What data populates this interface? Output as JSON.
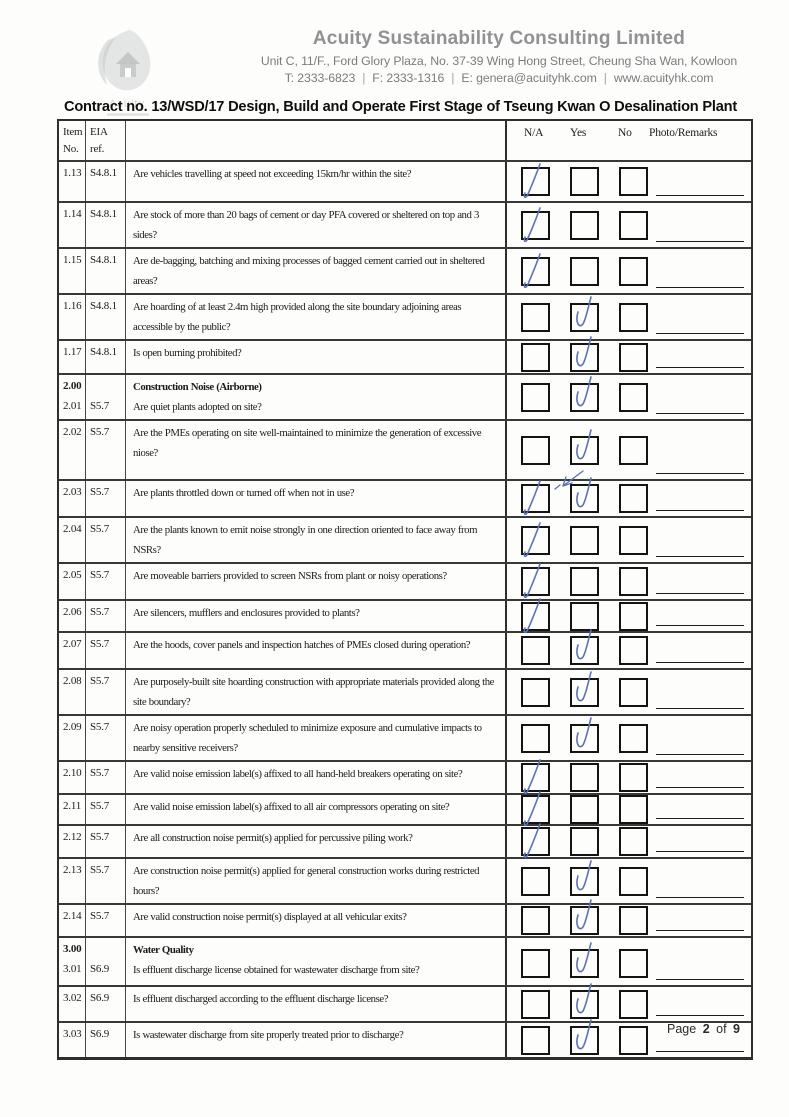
{
  "header": {
    "logo_text": "Acuity",
    "company_name": "Acuity Sustainability Consulting Limited",
    "address": "Unit C, 11/F., Ford Glory Plaza, No. 37-39 Wing Hong Street, Cheung Sha Wan, Kowloon",
    "contact_separator": "|",
    "contact_parts": [
      "T: 2333-6823",
      "F: 2333-1316",
      "E: genera@acuityhk.com",
      "www.acuityhk.com"
    ]
  },
  "title": "Contract no.  13/WSD/17 Design, Build and Operate First Stage of Tseung Kwan O Desalination Plant",
  "table": {
    "col_headers": {
      "item_line1": "Item",
      "item_line2": "No.",
      "eia": "EIA ref.",
      "na": "N/A",
      "yes": "Yes",
      "no": "No",
      "remarks": "Photo/Remarks"
    },
    "rows": [
      {
        "type": "q",
        "item": "1.13",
        "eia": "S4.8.1",
        "question": "Are vehicles travelling at speed not exceeding 15km/hr within the site?",
        "checked": [
          "na"
        ]
      },
      {
        "type": "q",
        "item": "1.14",
        "eia": "S4.8.1",
        "question": "Are stock of more than 20 bags of cement or day PFA covered or sheltered on top and 3 sides?",
        "checked": [
          "na"
        ]
      },
      {
        "type": "q",
        "item": "1.15",
        "eia": "S4.8.1",
        "question": "Are de-bagging, batching and mixing processes of bagged cement carried out in sheltered areas?",
        "checked": [
          "na"
        ]
      },
      {
        "type": "q",
        "item": "1.16",
        "eia": "S4.8.1",
        "question": "Are hoarding of at least 2.4m high provided along the site boundary adjoining areas accessible by the public?",
        "checked": [
          "yes"
        ]
      },
      {
        "type": "q",
        "item": "1.17",
        "eia": "S4.8.1",
        "question": "Is open burning prohibited?",
        "checked": [
          "yes"
        ]
      },
      {
        "type": "section",
        "item": "2.00",
        "title": "Construction Noise (Airborne)",
        "sub_item": "2.01",
        "eia": "S5.7",
        "question": "Are quiet plants adopted on site?",
        "checked": [
          "yes"
        ]
      },
      {
        "type": "q",
        "item": "2.02",
        "eia": "S5.7",
        "question": "Are the PMEs operating on site well-maintained to minimize the generation of excessive niose?",
        "checked": [
          "yes"
        ]
      },
      {
        "type": "q",
        "item": "2.03",
        "eia": "S5.7",
        "question": "Are plants throttled down or turned off when not in use?",
        "checked": [
          "na",
          "yes"
        ],
        "scribble": true
      },
      {
        "type": "q",
        "item": "2.04",
        "eia": "S5.7",
        "question": "Are the plants known to emit noise strongly in one direction oriented to face away from NSRs?",
        "checked": [
          "na"
        ]
      },
      {
        "type": "q",
        "item": "2.05",
        "eia": "S5.7",
        "question": "Are moveable barriers provided to screen NSRs from plant or noisy operations?",
        "checked": [
          "na"
        ]
      },
      {
        "type": "q",
        "item": "2.06",
        "eia": "S5.7",
        "question": "Are silencers, mufflers and enclosures provided to plants?",
        "checked": [
          "na"
        ]
      },
      {
        "type": "q",
        "item": "2.07",
        "eia": "S5.7",
        "question": "Are the hoods, cover panels and inspection hatches of PMEs closed during operation?",
        "checked": [
          "yes"
        ]
      },
      {
        "type": "q",
        "item": "2.08",
        "eia": "S5.7",
        "question": "Are purposely-built site hoarding construction with appropriate materials provided along the site boundary?",
        "checked": [
          "yes"
        ]
      },
      {
        "type": "q",
        "item": "2.09",
        "eia": "S5.7",
        "question": "Are noisy operation properly scheduled to minimize exposure and cumulative impacts to nearby sensitive receivers?",
        "checked": [
          "yes"
        ]
      },
      {
        "type": "q",
        "item": "2.10",
        "eia": "S5.7",
        "question": "Are valid noise emission label(s) affixed to all hand-held breakers operating on site?",
        "checked": [
          "na"
        ]
      },
      {
        "type": "q",
        "item": "2.11",
        "eia": "S5.7",
        "question": "Are valid noise emission label(s) affixed to all air compressors operating on site?",
        "checked": [
          "na"
        ]
      },
      {
        "type": "q",
        "item": "2.12",
        "eia": "S5.7",
        "question": "Are all construction noise permit(s) applied for percussive piling work?",
        "checked": [
          "na"
        ]
      },
      {
        "type": "q",
        "item": "2.13",
        "eia": "S5.7",
        "question": "Are construction noise permit(s) applied for general construction works during restricted hours?",
        "checked": [
          "yes"
        ]
      },
      {
        "type": "q",
        "item": "2.14",
        "eia": "S5.7",
        "question": "Are valid construction noise permit(s) displayed at all vehicular exits?",
        "checked": [
          "yes"
        ]
      },
      {
        "type": "section",
        "item": "3.00",
        "title": "Water Quality",
        "sub_item": "3.01",
        "eia": "S6.9",
        "question": "Is effluent discharge license obtained for wastewater discharge from site?",
        "checked": [
          "yes"
        ]
      },
      {
        "type": "q",
        "item": "3.02",
        "eia": "S6.9",
        "question": "Is effluent discharged according to the effluent discharge license?",
        "checked": [
          "yes"
        ]
      },
      {
        "type": "q",
        "item": "3.03",
        "eia": "S6.9",
        "question": "Is wastewater discharge from site properly treated prior to discharge?",
        "checked": [
          "yes"
        ]
      }
    ]
  },
  "footer": {
    "page_label": "Page",
    "page_number": "2",
    "of_label": "of",
    "total_pages": "9"
  },
  "colors": {
    "ink_blue": "#5d72b4",
    "company_gray": "#8f9193",
    "address_gray": "#7a7c7e"
  }
}
